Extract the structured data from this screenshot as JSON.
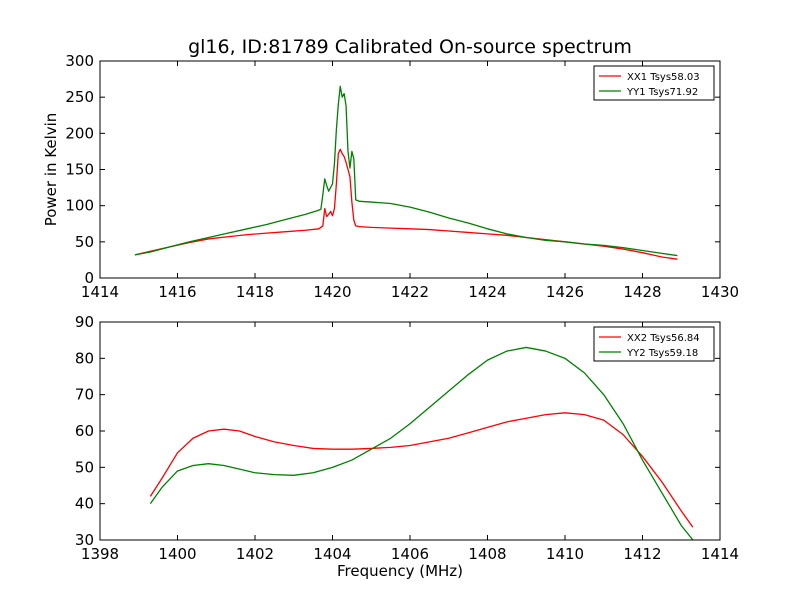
{
  "title": "gl16, ID:81789 Calibrated On-source spectrum",
  "colors": {
    "xx": "#ff0000",
    "yy": "#008000",
    "axes": "#000000"
  },
  "chart_data": [
    {
      "type": "line",
      "ylabel": "Power in Kelvin",
      "xlim": [
        1414,
        1430
      ],
      "ylim": [
        0,
        300
      ],
      "xticks": [
        1414,
        1416,
        1418,
        1420,
        1422,
        1424,
        1426,
        1428,
        1430
      ],
      "yticks": [
        0,
        50,
        100,
        150,
        200,
        250,
        300
      ],
      "legend_position": "top-right",
      "series": [
        {
          "name": "XX1 Tsys58.03",
          "color": "#ff0000",
          "x": [
            1414.9,
            1415.3,
            1415.8,
            1416.3,
            1416.8,
            1417.3,
            1417.8,
            1418.3,
            1418.8,
            1419.3,
            1419.65,
            1419.75,
            1419.8,
            1419.85,
            1419.9,
            1419.95,
            1420.0,
            1420.05,
            1420.1,
            1420.15,
            1420.2,
            1420.25,
            1420.3,
            1420.35,
            1420.4,
            1420.45,
            1420.5,
            1420.55,
            1420.6,
            1420.7,
            1421.0,
            1421.5,
            1422.0,
            1422.5,
            1423.0,
            1423.5,
            1424.0,
            1424.5,
            1425.0,
            1425.5,
            1426.0,
            1426.5,
            1427.0,
            1427.5,
            1428.0,
            1428.5,
            1428.9
          ],
          "y": [
            32,
            37,
            43,
            49,
            54,
            57,
            60,
            62,
            64,
            66,
            68,
            72,
            96,
            85,
            88,
            92,
            86,
            96,
            130,
            172,
            178,
            172,
            168,
            160,
            150,
            140,
            105,
            80,
            72,
            71,
            70,
            69,
            68,
            67,
            65,
            63,
            61,
            59,
            56,
            53,
            50,
            47,
            44,
            40,
            35,
            29,
            26
          ]
        },
        {
          "name": "YY1 Tsys71.92",
          "color": "#008000",
          "x": [
            1414.9,
            1415.3,
            1415.8,
            1416.3,
            1416.8,
            1417.3,
            1417.8,
            1418.3,
            1418.8,
            1419.3,
            1419.6,
            1419.7,
            1419.75,
            1419.8,
            1419.85,
            1419.9,
            1419.95,
            1420.0,
            1420.05,
            1420.1,
            1420.15,
            1420.2,
            1420.25,
            1420.3,
            1420.35,
            1420.4,
            1420.45,
            1420.5,
            1420.55,
            1420.6,
            1420.7,
            1421.0,
            1421.5,
            1422.0,
            1422.5,
            1423.0,
            1423.5,
            1424.0,
            1424.5,
            1425.0,
            1425.5,
            1426.0,
            1426.5,
            1427.0,
            1427.5,
            1428.0,
            1428.5,
            1428.9
          ],
          "y": [
            32,
            36,
            43,
            50,
            56,
            62,
            68,
            74,
            81,
            88,
            93,
            95,
            115,
            137,
            128,
            120,
            125,
            130,
            158,
            205,
            240,
            265,
            250,
            255,
            238,
            175,
            152,
            175,
            165,
            108,
            106,
            105,
            103,
            98,
            91,
            83,
            76,
            68,
            61,
            56,
            52,
            50,
            47,
            45,
            42,
            38,
            34,
            31
          ]
        }
      ]
    },
    {
      "type": "line",
      "xlabel": "Frequency (MHz)",
      "xlim": [
        1398,
        1414
      ],
      "ylim": [
        30,
        90
      ],
      "xticks": [
        1398,
        1400,
        1402,
        1404,
        1406,
        1408,
        1410,
        1412,
        1414
      ],
      "yticks": [
        30,
        40,
        50,
        60,
        70,
        80,
        90
      ],
      "legend_position": "top-right",
      "series": [
        {
          "name": "XX2 Tsys56.84",
          "color": "#ff0000",
          "x": [
            1399.3,
            1399.6,
            1400.0,
            1400.4,
            1400.8,
            1401.2,
            1401.6,
            1402.0,
            1402.5,
            1403.0,
            1403.5,
            1404.0,
            1404.5,
            1405.0,
            1405.5,
            1406.0,
            1406.5,
            1407.0,
            1407.5,
            1408.0,
            1408.5,
            1409.0,
            1409.5,
            1410.0,
            1410.5,
            1411.0,
            1411.5,
            1412.0,
            1412.5,
            1413.0,
            1413.3
          ],
          "y": [
            42,
            47,
            54,
            58,
            60,
            60.5,
            60,
            58.5,
            57,
            56,
            55.2,
            55,
            55,
            55.2,
            55.5,
            56,
            57,
            58,
            59.5,
            61,
            62.5,
            63.5,
            64.5,
            65,
            64.5,
            63,
            59,
            53,
            46,
            38,
            33.5
          ]
        },
        {
          "name": "YY2 Tsys59.18",
          "color": "#008000",
          "x": [
            1399.3,
            1399.6,
            1400.0,
            1400.4,
            1400.8,
            1401.2,
            1401.6,
            1402.0,
            1402.5,
            1403.0,
            1403.5,
            1404.0,
            1404.5,
            1405.0,
            1405.5,
            1406.0,
            1406.5,
            1407.0,
            1407.5,
            1408.0,
            1408.5,
            1409.0,
            1409.5,
            1410.0,
            1410.5,
            1411.0,
            1411.5,
            1412.0,
            1412.5,
            1413.0,
            1413.3
          ],
          "y": [
            40,
            44.5,
            49,
            50.5,
            51,
            50.5,
            49.5,
            48.5,
            48,
            47.8,
            48.5,
            50,
            52,
            55,
            58,
            62,
            66.5,
            71,
            75.5,
            79.5,
            82,
            83,
            82,
            80,
            76,
            70,
            62,
            52,
            43,
            34,
            30
          ]
        }
      ]
    }
  ]
}
